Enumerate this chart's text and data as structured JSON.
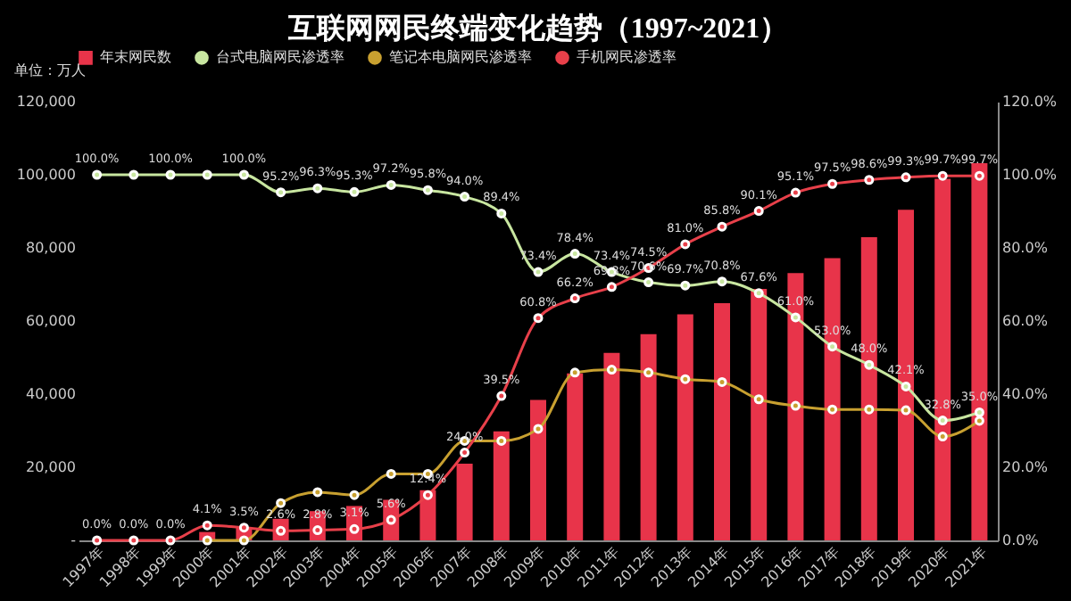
{
  "chart_data": {
    "type": "bar",
    "title": "互联网网民终端变化趋势（1997~2021）",
    "annotations": [
      "单位：万人"
    ],
    "categories": [
      "1997年",
      "1998年",
      "1999年",
      "2000年",
      "2001年",
      "2002年",
      "2003年",
      "2004年",
      "2005年",
      "2006年",
      "2007年",
      "2008年",
      "2009年",
      "2010年",
      "2011年",
      "2012年",
      "2013年",
      "2014年",
      "2015年",
      "2016年",
      "2017年",
      "2018年",
      "2019年",
      "2020年",
      "2021年"
    ],
    "series": [
      {
        "name": "年末网民数",
        "color": "#e8344a",
        "values": [
          null,
          null,
          null,
          2300,
          3400,
          5900,
          8000,
          9400,
          11100,
          13700,
          21000,
          29800,
          38400,
          45700,
          51300,
          56400,
          61800,
          64900,
          68800,
          73100,
          77200,
          82900,
          90400,
          98900,
          103200
        ]
      },
      {
        "name": "台式电脑网民渗透率",
        "type": "line",
        "axis": "y2",
        "color": "#c8e6a0",
        "values": [
          100,
          100,
          100,
          100,
          100,
          95.2,
          96.3,
          95.3,
          97.2,
          95.8,
          94.0,
          89.4,
          73.4,
          78.4,
          73.4,
          70.6,
          69.7,
          70.8,
          67.6,
          61.0,
          53.0,
          48.0,
          42.1,
          32.8,
          35.0
        ],
        "value_labels": [
          "100.0%",
          null,
          "100.0%",
          null,
          "100.0%",
          "95.2%",
          "96.3%",
          "95.3%",
          "97.2%",
          "95.8%",
          "94.0%",
          "89.4%",
          "73.4%",
          "78.4%",
          "73.4%",
          "70.6%",
          "69.7%",
          "70.8%",
          "67.6%",
          "61.0%",
          "53.0%",
          "48.0%",
          "42.1%",
          "32.8%",
          "35.0%"
        ]
      },
      {
        "name": "笔记本电脑网民渗透率",
        "type": "line",
        "axis": "y2",
        "color": "#c8a030",
        "values": [
          null,
          null,
          null,
          0,
          0,
          10.2,
          13.2,
          12.4,
          18.2,
          18.2,
          27.2,
          27.2,
          30.5,
          45.9,
          46.7,
          45.9,
          44.1,
          43.3,
          38.6,
          36.8,
          35.8,
          35.8,
          35.6,
          28.4,
          32.7
        ]
      },
      {
        "name": "手机网民渗透率",
        "type": "line",
        "axis": "y2",
        "color": "#e8404a",
        "values": [
          0,
          0,
          0,
          4.1,
          3.5,
          2.6,
          2.8,
          3.1,
          5.6,
          12.4,
          24.0,
          39.5,
          60.8,
          66.2,
          69.3,
          74.5,
          81.0,
          85.8,
          90.1,
          95.1,
          97.5,
          98.6,
          99.3,
          99.7,
          99.7
        ],
        "value_labels": [
          "0.0%",
          "0.0%",
          "0.0%",
          "4.1%",
          "3.5%",
          "2.6%",
          "2.8%",
          "3.1%",
          "5.6%",
          "12.4%",
          "24.0%",
          "39.5%",
          "60.8%",
          "66.2%",
          "69.3%",
          "74.5%",
          "81.0%",
          "85.8%",
          "90.1%",
          "95.1%",
          "97.5%",
          "98.6%",
          "99.3%",
          "99.7%",
          "99.7%"
        ]
      }
    ],
    "ylim": [
      0,
      120000
    ],
    "yticks": [
      {
        "value": 0,
        "label": "-"
      },
      {
        "value": 20000,
        "label": "20,000"
      },
      {
        "value": 40000,
        "label": "40,000"
      },
      {
        "value": 60000,
        "label": "60,000"
      },
      {
        "value": 80000,
        "label": "80,000"
      },
      {
        "value": 100000,
        "label": "100,000"
      },
      {
        "value": 120000,
        "label": "120,000"
      }
    ],
    "y2lim": [
      0,
      120
    ],
    "y2ticks": [
      {
        "value": 0,
        "label": "0.0%"
      },
      {
        "value": 20,
        "label": "20.0%"
      },
      {
        "value": 40,
        "label": "40.0%"
      },
      {
        "value": 60,
        "label": "60.0%"
      },
      {
        "value": 80,
        "label": "80.0%"
      },
      {
        "value": 100,
        "label": "100.0%"
      },
      {
        "value": 120,
        "label": "120.0%"
      }
    ],
    "legend": "top",
    "marker": "circle",
    "line_style": "solid",
    "grid": false
  }
}
